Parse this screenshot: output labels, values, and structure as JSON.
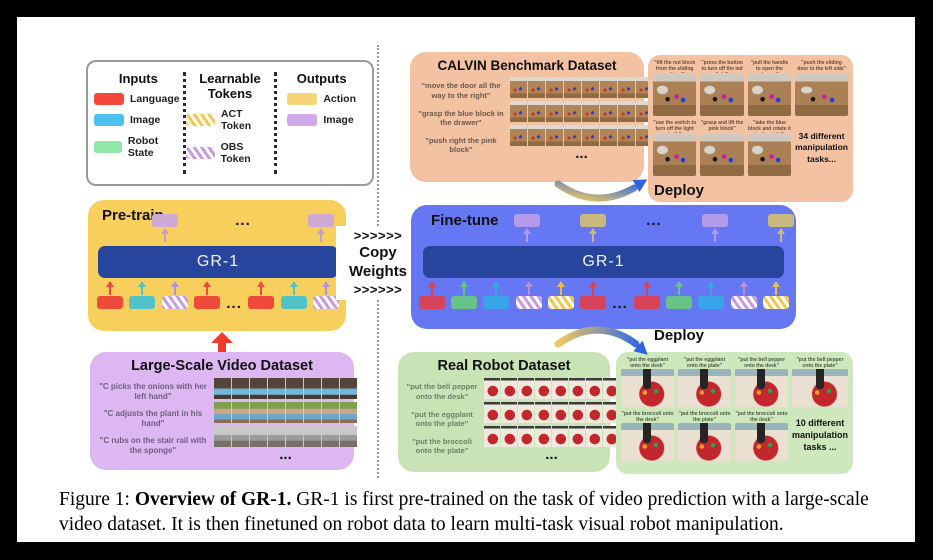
{
  "ellipsis": "...",
  "palette": {
    "lang_pre": {
      "color": "#f04a3a"
    },
    "img_pre": {
      "color": "#4fc3c7"
    },
    "lang_ft": {
      "color": "#d64358"
    },
    "state": {
      "color": "#66c287"
    },
    "img_ft": {
      "color": "#39a5e8"
    },
    "obs": {
      "hatch": "hatch-p",
      "arrow": "#b292dd"
    },
    "act": {
      "hatch": "hatch-y",
      "arrow": "#e2bf4e"
    },
    "image_out_pre": {
      "color": "#cfa9d6",
      "arrow": "#c49ad8"
    },
    "image_out_ft": {
      "color": "#b49bea"
    },
    "action_out": {
      "color": "#c9b97e"
    }
  },
  "legend": {
    "columns": [
      {
        "title": "Inputs",
        "items": [
          {
            "label": "Language",
            "color": "#f4483c"
          },
          {
            "label": "Image",
            "color": "#4ec0ee"
          },
          {
            "label": "Robot State",
            "color": "#90e8a8"
          }
        ]
      },
      {
        "title": "Learnable Tokens",
        "items": [
          {
            "label": "ACT Token",
            "hatch": "hatch-y"
          },
          {
            "label": "OBS Token",
            "hatch": "hatch-p"
          }
        ]
      },
      {
        "title": "Outputs",
        "items": [
          {
            "label": "Action",
            "color": "#f6d478"
          },
          {
            "label": "Image",
            "color": "#cfa9e8"
          }
        ]
      }
    ]
  },
  "pretrain": {
    "title": "Pre-train",
    "model_label": "GR-1",
    "top_tokens": [
      "image_out_pre",
      "ellipsis",
      "image_out_pre"
    ],
    "bottom_tokens": [
      "lang_pre",
      "img_pre",
      "obs",
      "lang_pre",
      "ellipsis",
      "lang_pre",
      "img_pre",
      "obs"
    ]
  },
  "copy_weights": {
    "chevrons_top": ">>>>>>",
    "line1": "Copy",
    "line2": "Weights",
    "chevrons_bottom": ">>>>>>"
  },
  "finetune": {
    "title": "Fine-tune",
    "model_label": "GR-1",
    "top_tokens": [
      "image_out_ft",
      "action_out",
      "ellipsis",
      "image_out_ft",
      "action_out"
    ],
    "bottom_tokens": [
      "lang_ft",
      "state",
      "img_ft",
      "obs",
      "act",
      "lang_ft",
      "ellipsis",
      "lang_ft",
      "state",
      "img_ft",
      "obs",
      "act"
    ]
  },
  "calvin_dataset": {
    "title": "CALVIN Benchmark Dataset",
    "quotes": [
      "\"move the door all the way to the right\"",
      "\"grasp the blue block in the drawer\"",
      "\"push right the pink block\""
    ],
    "strip_styles": [
      "calvin",
      "calvin",
      "calvin"
    ],
    "frames_per_strip": 8
  },
  "video_dataset": {
    "title": "Large-Scale Video Dataset",
    "quotes": [
      "\"C picks the onions with her left hand\"",
      "\"C adjusts the plant in his hand\"",
      "\"C rubs on the stair rail with the sponge\""
    ],
    "strip_styles": [
      "video1",
      "video2",
      "video3"
    ],
    "frames_per_strip": 8
  },
  "robot_dataset": {
    "title": "Real Robot Dataset",
    "quotes": [
      "\"put the bell pepper onto the desk\"",
      "\"put the eggplant onto the plate\"",
      "\"put the broccoli onto the plate\""
    ],
    "strip_styles": [
      "robot",
      "robot",
      "robot"
    ],
    "frames_per_strip": 8
  },
  "calvin_results": {
    "deploy_label": "Deploy",
    "note": "34 different manipulation tasks...",
    "row1": [
      "\"lift the red block from the sliding cabinet\"",
      "\"press the button to turn off the led light\"",
      "\"pull the handle to open the drawer\"",
      "\"push the sliding door to the left side\""
    ],
    "row2": [
      "\"use the switch to turn off the light bulb\"",
      "\"grasp and lift the pink block\"",
      "\"take the blue block and rotate it to the right\""
    ]
  },
  "robot_results": {
    "deploy_label": "Deploy",
    "note": "10 different manipulation tasks ...",
    "row1": [
      "\"put the eggplant onto the desk\"",
      "\"put the eggplant onto the plate\"",
      "\"put the bell pepper onto the desk\"",
      "\"put the bell pepper onto the plate\""
    ],
    "row2": [
      "\"put the broccoli onto the desk\"",
      "\"put the broccoli onto the plate\"",
      "\"put the broccoli onto the desk\""
    ]
  },
  "caption": {
    "prefix": "Figure 1: ",
    "bold": "Overview of GR-1.",
    "rest": " GR-1 is first pre-trained on the task of video prediction with a large-scale video dataset. It is then finetuned on robot data to learn multi-task visual robot manipulation."
  }
}
